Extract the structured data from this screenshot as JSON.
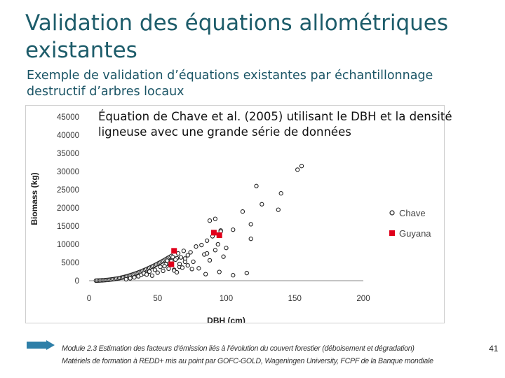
{
  "slide": {
    "title": "Validation des équations allométriques existantes",
    "subtitle": "Exemple de validation d’équations existantes par échantillonnage destructif d’arbres locaux",
    "chart_caption": "Équation de Chave et al. (2005) utilisant le DBH et la densité ligneuse avec une grande série de données",
    "footer_line1": "Module 2.3 Estimation des facteurs d’émission liés à l’évolution du couvert forestier (déboisement et dégradation)",
    "footer_line2": "Matériels de formation à REDD+ mis au point par GOFC-GOLD, Wageningen University, FCPF de la Banque mondiale",
    "page_number": "41"
  },
  "colors": {
    "title": "#1d5c6a",
    "guyana": "#e0001b",
    "chave": "#222222"
  },
  "chart_data": {
    "type": "scatter",
    "title": "",
    "xlabel": "DBH (cm)",
    "ylabel": "Biomass (kg)",
    "xlim": [
      0,
      200
    ],
    "ylim": [
      0,
      45000
    ],
    "x_ticks": [
      "0",
      "50",
      "100",
      "150",
      "200"
    ],
    "y_ticks": [
      "0",
      "5000",
      "10000",
      "15000",
      "20000",
      "25000",
      "30000",
      "35000",
      "40000",
      "45000"
    ],
    "grid": false,
    "legend_position": "right",
    "series": [
      {
        "name": "Chave",
        "marker": "open-circle",
        "x": [
          5,
          6,
          7,
          8,
          9,
          10,
          11,
          12,
          13,
          14,
          15,
          16,
          17,
          18,
          19,
          20,
          21,
          22,
          23,
          24,
          25,
          26,
          27,
          28,
          29,
          30,
          31,
          32,
          33,
          34,
          35,
          36,
          37,
          38,
          39,
          40,
          41,
          42,
          43,
          44,
          45,
          46,
          47,
          48,
          49,
          50,
          51,
          52,
          53,
          54,
          55,
          56,
          57,
          58,
          59,
          60,
          27,
          30,
          33,
          36,
          38,
          40,
          42,
          44,
          46,
          48,
          50,
          52,
          54,
          56,
          58,
          60,
          62,
          64,
          66,
          55,
          57,
          59,
          61,
          63,
          65,
          67,
          69,
          70,
          72,
          62,
          64,
          66,
          68,
          70,
          72,
          74,
          76,
          78,
          80,
          82,
          84,
          86,
          88,
          90,
          92,
          94,
          96,
          98,
          100,
          75,
          85,
          95,
          105,
          115,
          88,
          92,
          96,
          86,
          118,
          112,
          140,
          126,
          122,
          138,
          155,
          152,
          118,
          105
        ],
        "y": [
          30,
          40,
          55,
          70,
          90,
          110,
          140,
          170,
          200,
          240,
          280,
          330,
          380,
          430,
          490,
          560,
          630,
          700,
          780,
          860,
          950,
          1050,
          1150,
          1250,
          1360,
          1480,
          1600,
          1720,
          1850,
          1980,
          2120,
          2260,
          2400,
          2550,
          2700,
          2860,
          3020,
          3180,
          3350,
          3520,
          3700,
          3880,
          4060,
          4250,
          4450,
          4650,
          4850,
          5050,
          5250,
          5460,
          5680,
          5900,
          6120,
          6340,
          6560,
          6800,
          400,
          650,
          900,
          1200,
          1600,
          2000,
          1700,
          2500,
          1400,
          3000,
          2200,
          3800,
          2700,
          4500,
          3300,
          5400,
          3000,
          6200,
          3800,
          4000,
          5500,
          4300,
          6500,
          5800,
          7500,
          6400,
          8200,
          5200,
          7000,
          2800,
          2300,
          4600,
          3600,
          6100,
          4200,
          7800,
          5200,
          9400,
          3400,
          9800,
          7200,
          11000,
          5600,
          12200,
          8400,
          10000,
          13800,
          6600,
          9000,
          3200,
          1800,
          2400,
          1500,
          2100,
          16500,
          17000,
          13500,
          7500,
          15500,
          19000,
          24000,
          21000,
          26000,
          19500,
          31500,
          30500,
          11500,
          14000
        ]
      },
      {
        "name": "Guyana",
        "marker": "filled-square",
        "x": [
          60,
          62,
          91,
          95
        ],
        "y": [
          4500,
          8200,
          13200,
          12500
        ]
      }
    ]
  }
}
